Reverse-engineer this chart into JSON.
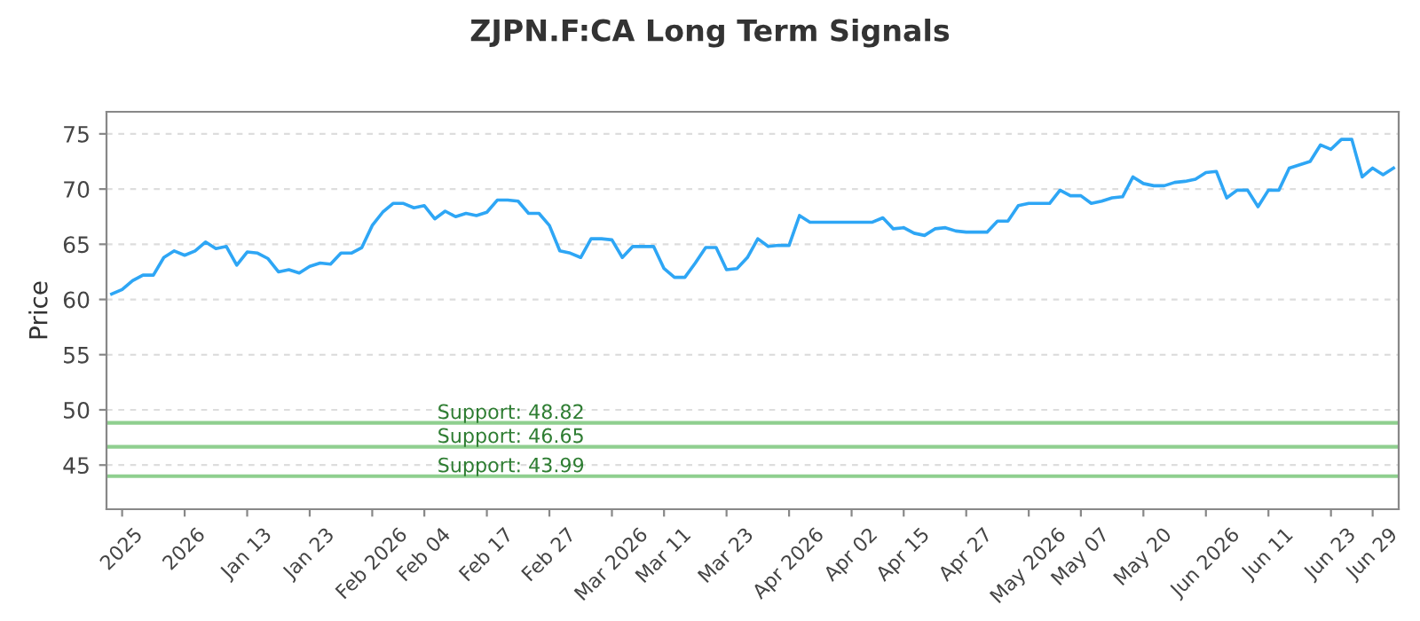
{
  "chart_data": {
    "type": "line",
    "title": "ZJPN.F:CA Long Term Signals",
    "ylabel": "Price",
    "categories": [
      null,
      "2025",
      null,
      null,
      null,
      null,
      null,
      "2026",
      null,
      null,
      null,
      null,
      null,
      "Jan 13",
      null,
      null,
      null,
      null,
      null,
      "Jan 23",
      null,
      null,
      null,
      null,
      null,
      "Feb 2026",
      null,
      null,
      null,
      null,
      "Feb 04",
      null,
      null,
      null,
      null,
      null,
      "Feb 17",
      null,
      null,
      null,
      null,
      null,
      "Feb 27",
      null,
      null,
      null,
      null,
      null,
      "Mar 2026",
      null,
      null,
      null,
      null,
      "Mar 11",
      null,
      null,
      null,
      null,
      null,
      "Mar 23",
      null,
      null,
      null,
      null,
      null,
      "Apr 2026",
      null,
      null,
      null,
      null,
      null,
      "Apr 02",
      null,
      null,
      null,
      null,
      "Apr 15",
      null,
      null,
      null,
      null,
      null,
      "Apr 27",
      null,
      null,
      null,
      null,
      null,
      "May 2026",
      null,
      null,
      null,
      null,
      "May 07",
      null,
      null,
      null,
      null,
      null,
      "May 20",
      null,
      null,
      null,
      null,
      null,
      "Jun 2026",
      null,
      null,
      null,
      null,
      null,
      "Jun 11",
      null,
      null,
      null,
      null,
      null,
      "Jun 23",
      null,
      null,
      null,
      "Jun 29",
      null,
      null
    ],
    "series": [
      {
        "color": "#2ea6f5",
        "values": [
          60.5,
          60.9,
          61.7,
          62.2,
          62.2,
          63.8,
          64.4,
          64.0,
          64.4,
          65.2,
          64.6,
          64.8,
          63.1,
          64.3,
          64.2,
          63.7,
          62.5,
          62.7,
          62.4,
          63.0,
          63.3,
          63.2,
          64.2,
          64.2,
          64.7,
          66.7,
          67.9,
          68.7,
          68.7,
          68.3,
          68.5,
          67.3,
          68.0,
          67.5,
          67.8,
          67.6,
          67.9,
          69.0,
          69.0,
          68.9,
          67.8,
          67.8,
          66.7,
          64.4,
          64.2,
          63.8,
          65.5,
          65.5,
          65.4,
          63.8,
          64.8,
          64.8,
          64.8,
          62.8,
          62.0,
          62.0,
          63.3,
          64.7,
          64.7,
          62.7,
          62.8,
          63.8,
          65.5,
          64.8,
          64.9,
          64.9,
          67.6,
          67.0,
          67.0,
          67.0,
          67.0,
          67.0,
          67.0,
          67.0,
          67.4,
          66.4,
          66.5,
          66.0,
          65.8,
          66.4,
          66.5,
          66.2,
          66.1,
          66.1,
          66.1,
          67.1,
          67.1,
          68.5,
          68.7,
          68.7,
          68.7,
          69.9,
          69.4,
          69.4,
          68.7,
          68.9,
          69.2,
          69.3,
          71.1,
          70.5,
          70.3,
          70.3,
          70.6,
          70.7,
          70.9,
          71.5,
          71.6,
          69.2,
          69.9,
          69.9,
          68.4,
          69.9,
          69.9,
          71.9,
          72.2,
          72.5,
          74.0,
          73.6,
          74.5,
          74.5,
          71.1,
          71.9,
          71.3,
          71.9
        ]
      }
    ],
    "ylim": [
      41,
      77
    ],
    "yticks": [
      45,
      50,
      55,
      60,
      65,
      70,
      75
    ],
    "grid": "y",
    "marker": "none",
    "line_style": "solid",
    "ref_lines": [
      {
        "axis": "y",
        "value": 48.82,
        "label": "Support: 48.82",
        "color": "#8fcf8f"
      },
      {
        "axis": "y",
        "value": 46.65,
        "label": "Support: 46.65",
        "color": "#8fcf8f"
      },
      {
        "axis": "y",
        "value": 43.99,
        "label": "Support: 43.99",
        "color": "#8fcf8f"
      }
    ]
  }
}
